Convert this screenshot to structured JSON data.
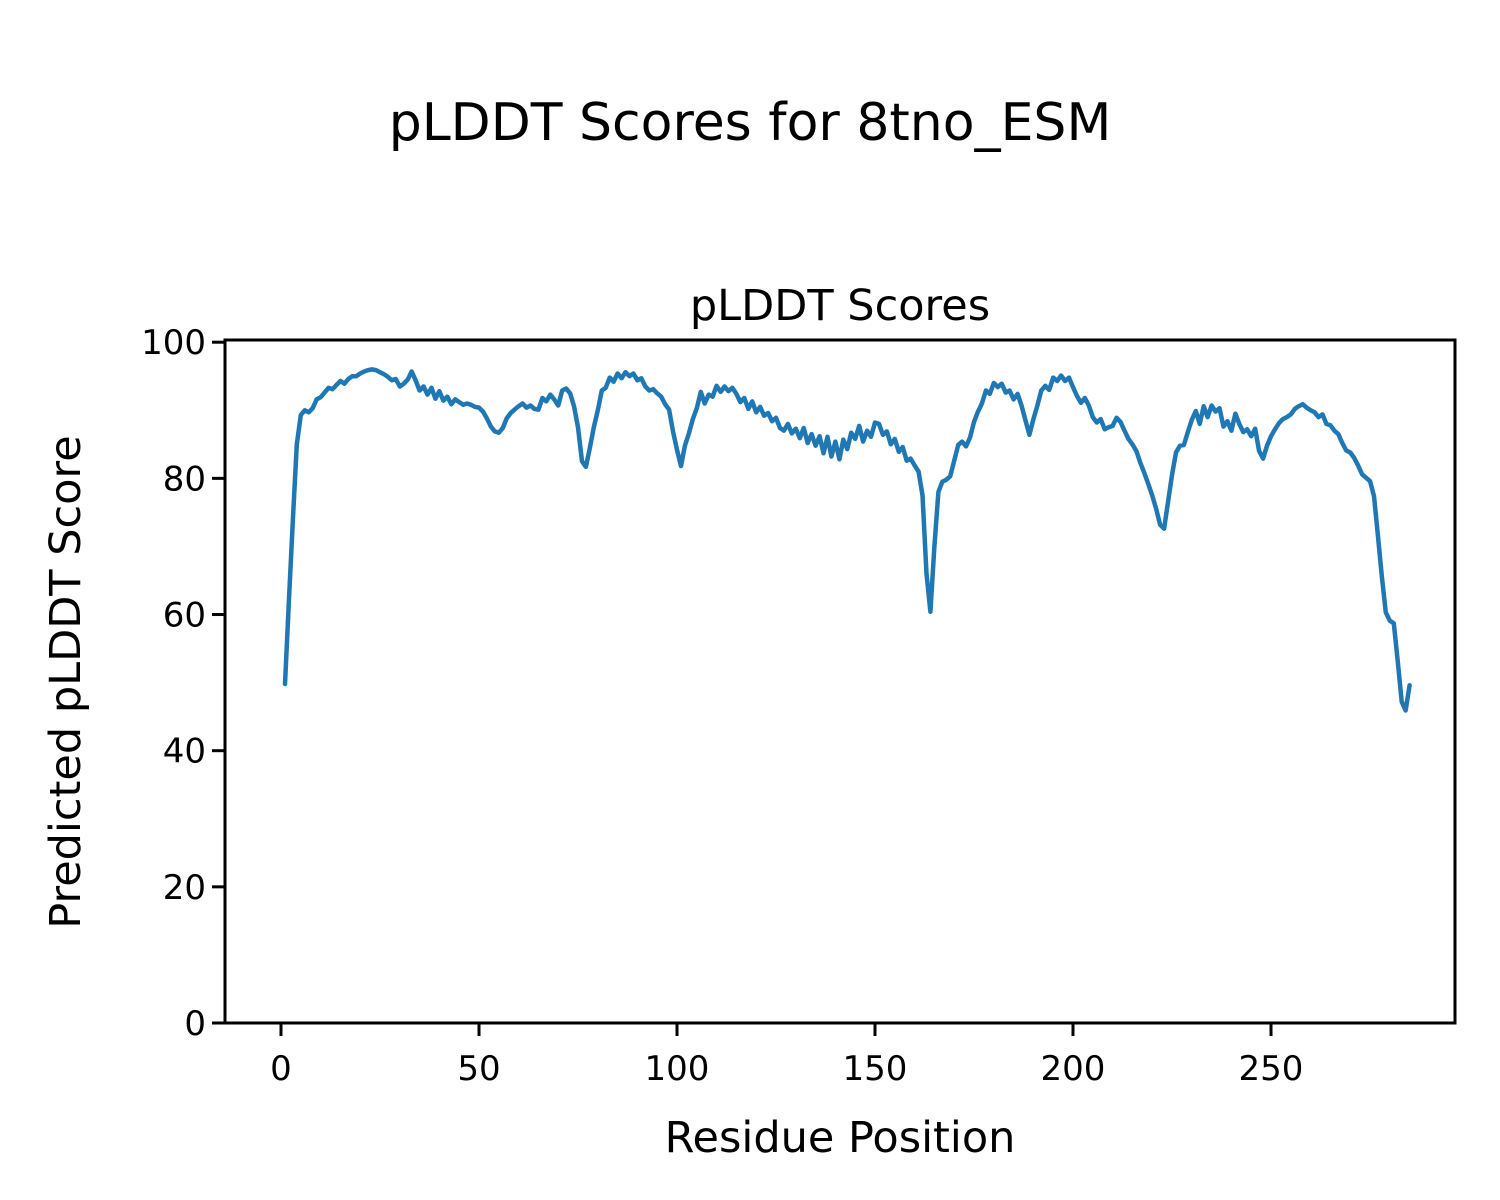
{
  "figure": {
    "suptitle": "pLDDT Scores for 8tno_ESM",
    "background_color": "#ffffff",
    "text_color": "#000000"
  },
  "chart_data": {
    "type": "line",
    "title": "pLDDT Scores",
    "xlabel": "Residue Position",
    "ylabel": "Predicted pLDDT Score",
    "series_name": "pLDDT",
    "line_color": "#1f77b4",
    "grid": false,
    "legend": "none",
    "xlim": [
      -13.2,
      298.2
    ],
    "ylim": [
      0,
      100.3
    ],
    "x_ticks": [
      0,
      50,
      100,
      150,
      200,
      250
    ],
    "y_ticks": [
      0,
      20,
      40,
      60,
      80,
      100
    ],
    "x_start": 1,
    "x_step": 1,
    "values": [
      49.8,
      62.0,
      74.0,
      85.0,
      89.3,
      90.0,
      89.7,
      90.3,
      91.6,
      91.9,
      92.6,
      93.3,
      93.1,
      93.7,
      94.3,
      93.9,
      94.6,
      95.0,
      95.0,
      95.4,
      95.7,
      95.9,
      96.0,
      95.9,
      95.6,
      95.3,
      94.9,
      94.4,
      94.6,
      93.5,
      93.9,
      94.5,
      95.7,
      94.4,
      92.9,
      93.5,
      92.3,
      93.3,
      91.7,
      92.8,
      91.4,
      92.0,
      90.9,
      91.6,
      91.2,
      90.8,
      91.0,
      90.8,
      90.5,
      90.4,
      89.8,
      88.8,
      87.6,
      86.9,
      86.7,
      87.4,
      88.8,
      89.6,
      90.1,
      90.6,
      91.0,
      90.4,
      90.7,
      90.2,
      90.1,
      91.8,
      91.3,
      92.3,
      91.6,
      90.7,
      92.9,
      93.2,
      92.5,
      90.6,
      87.5,
      82.5,
      81.7,
      84.5,
      87.5,
      90.0,
      92.9,
      93.3,
      94.8,
      94.2,
      95.4,
      94.7,
      95.6,
      95.0,
      95.4,
      94.4,
      94.7,
      93.5,
      92.9,
      93.1,
      92.5,
      92.0,
      90.9,
      90.1,
      86.9,
      84.2,
      81.8,
      84.8,
      86.6,
      88.7,
      90.3,
      92.7,
      91.0,
      92.3,
      92.0,
      93.6,
      92.7,
      93.5,
      92.8,
      93.3,
      92.4,
      91.2,
      91.8,
      90.2,
      91.3,
      89.7,
      90.5,
      89.2,
      89.6,
      88.4,
      88.9,
      87.4,
      87.0,
      88.0,
      86.6,
      87.3,
      85.9,
      87.4,
      85.2,
      86.5,
      84.8,
      86.2,
      83.7,
      86.1,
      83.2,
      85.4,
      82.8,
      85.7,
      84.3,
      86.7,
      85.8,
      87.7,
      85.4,
      87.0,
      86.1,
      88.2,
      88.0,
      86.4,
      86.9,
      85.0,
      85.8,
      83.9,
      84.6,
      82.6,
      82.9,
      81.9,
      81.0,
      77.5,
      66.0,
      60.4,
      70.0,
      78.0,
      79.5,
      79.8,
      80.3,
      82.6,
      84.9,
      85.4,
      84.7,
      86.0,
      88.3,
      89.8,
      91.0,
      92.9,
      92.4,
      94.0,
      93.4,
      93.9,
      92.6,
      92.9,
      91.6,
      92.4,
      90.7,
      88.5,
      86.4,
      88.7,
      90.7,
      92.9,
      93.6,
      93.0,
      94.8,
      94.3,
      95.1,
      94.3,
      94.8,
      93.4,
      92.1,
      91.1,
      91.8,
      90.7,
      89.0,
      88.2,
      88.7,
      87.2,
      87.5,
      87.7,
      88.9,
      88.3,
      87.0,
      85.8,
      85.0,
      84.0,
      82.3,
      80.8,
      79.2,
      77.5,
      75.5,
      73.2,
      72.6,
      76.5,
      80.5,
      83.8,
      84.8,
      84.9,
      86.8,
      88.6,
      89.9,
      88.0,
      90.6,
      89.0,
      90.7,
      89.8,
      90.3,
      87.6,
      88.4,
      87.0,
      89.5,
      88.0,
      86.8,
      87.2,
      86.2,
      87.3,
      84.0,
      82.9,
      84.8,
      86.2,
      87.2,
      88.1,
      88.7,
      89.0,
      89.4,
      90.2,
      90.6,
      90.9,
      90.4,
      90.0,
      89.7,
      89.0,
      89.4,
      88.0,
      87.8,
      87.0,
      86.5,
      85.2,
      84.1,
      83.8,
      83.0,
      81.9,
      80.6,
      80.1,
      79.6,
      77.4,
      71.6,
      65.5,
      60.3,
      59.1,
      58.7,
      53.2,
      47.2,
      45.9,
      49.6
    ]
  }
}
